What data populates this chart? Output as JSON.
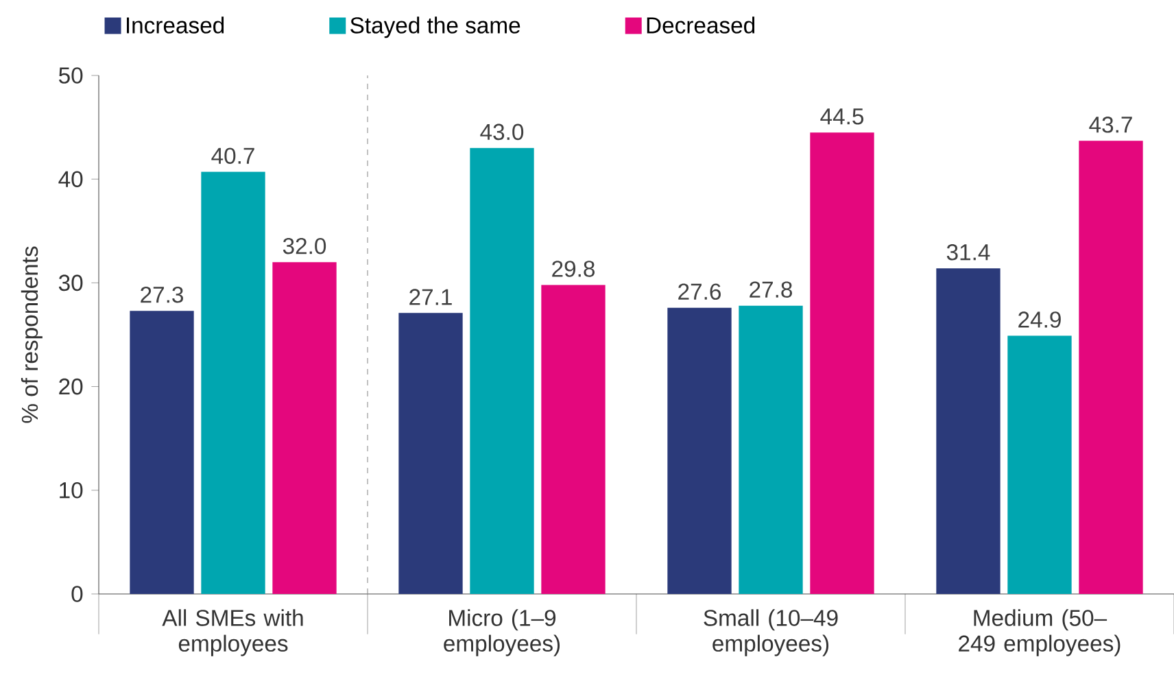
{
  "chart_data": {
    "type": "bar",
    "ylabel": "% of respondents",
    "categories": [
      "All SMEs with employees",
      "Micro (1–9 employees)",
      "Small (10–49 employees)",
      "Medium (50–249 employees)"
    ],
    "series": [
      {
        "name": "Increased",
        "color": "#2b3a7a",
        "values": [
          27.3,
          27.1,
          27.6,
          31.4
        ],
        "value_labels": [
          "27.3",
          "27.1",
          "27.6",
          "31.4"
        ]
      },
      {
        "name": "Stayed the same",
        "color": "#00a6b0",
        "values": [
          40.7,
          43.0,
          27.8,
          24.9
        ],
        "value_labels": [
          "40.7",
          "43.0",
          "27.8",
          "24.9"
        ]
      },
      {
        "name": "Decreased",
        "color": "#e4077d",
        "values": [
          32.0,
          29.8,
          44.5,
          43.7
        ],
        "value_labels": [
          "32.0",
          "29.8",
          "44.5",
          "43.7"
        ]
      }
    ],
    "ylim": [
      0,
      50
    ],
    "yticks": [
      0,
      10,
      20,
      30,
      40,
      50
    ],
    "legend": "top left",
    "grid": false
  }
}
